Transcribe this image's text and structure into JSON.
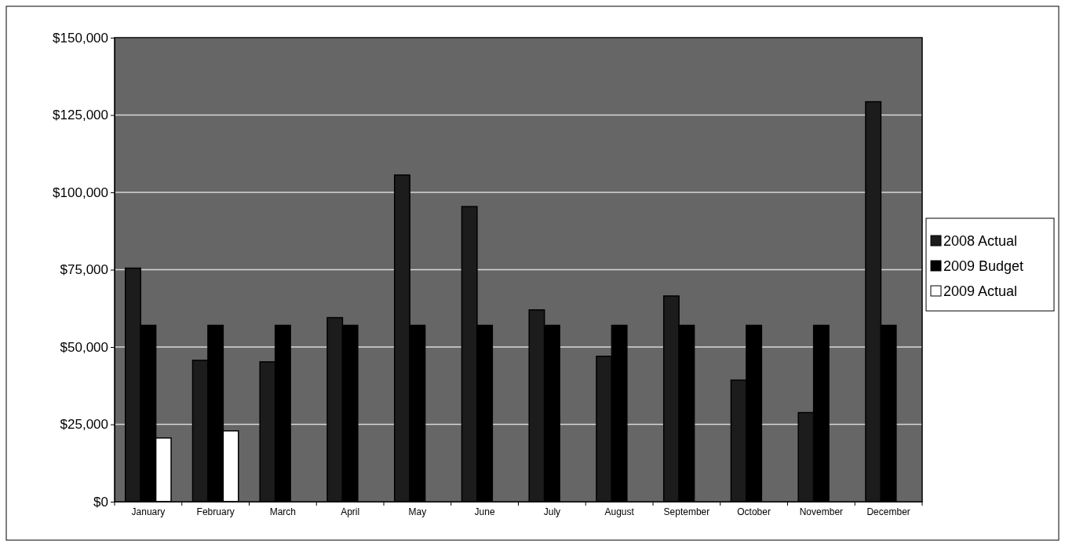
{
  "chart_data": {
    "type": "bar",
    "categories": [
      "January",
      "February",
      "March",
      "April",
      "May",
      "June",
      "July",
      "August",
      "September",
      "October",
      "November",
      "December"
    ],
    "series": [
      {
        "name": "2008 Actual",
        "color": "#1c1c1c",
        "values": [
          75500,
          45700,
          45200,
          59500,
          105600,
          95400,
          62000,
          47000,
          66500,
          39300,
          28800,
          129300
        ]
      },
      {
        "name": "2009 Budget",
        "color": "#000000",
        "values": [
          57000,
          57000,
          57000,
          57000,
          57000,
          57000,
          57000,
          57000,
          57000,
          57000,
          57000,
          57000
        ]
      },
      {
        "name": "2009 Actual",
        "color": "#ffffff",
        "values": [
          20600,
          22900,
          null,
          null,
          null,
          null,
          null,
          null,
          null,
          null,
          null,
          null
        ]
      }
    ],
    "ylim": [
      0,
      150000
    ],
    "yticks": [
      {
        "value": 0,
        "label": "$0"
      },
      {
        "value": 25000,
        "label": "$25,000"
      },
      {
        "value": 50000,
        "label": "$50,000"
      },
      {
        "value": 75000,
        "label": "$75,000"
      },
      {
        "value": 100000,
        "label": "$100,000"
      },
      {
        "value": 125000,
        "label": "$125,000"
      },
      {
        "value": 150000,
        "label": "$150,000"
      }
    ],
    "grid": "y",
    "legend": "right"
  }
}
